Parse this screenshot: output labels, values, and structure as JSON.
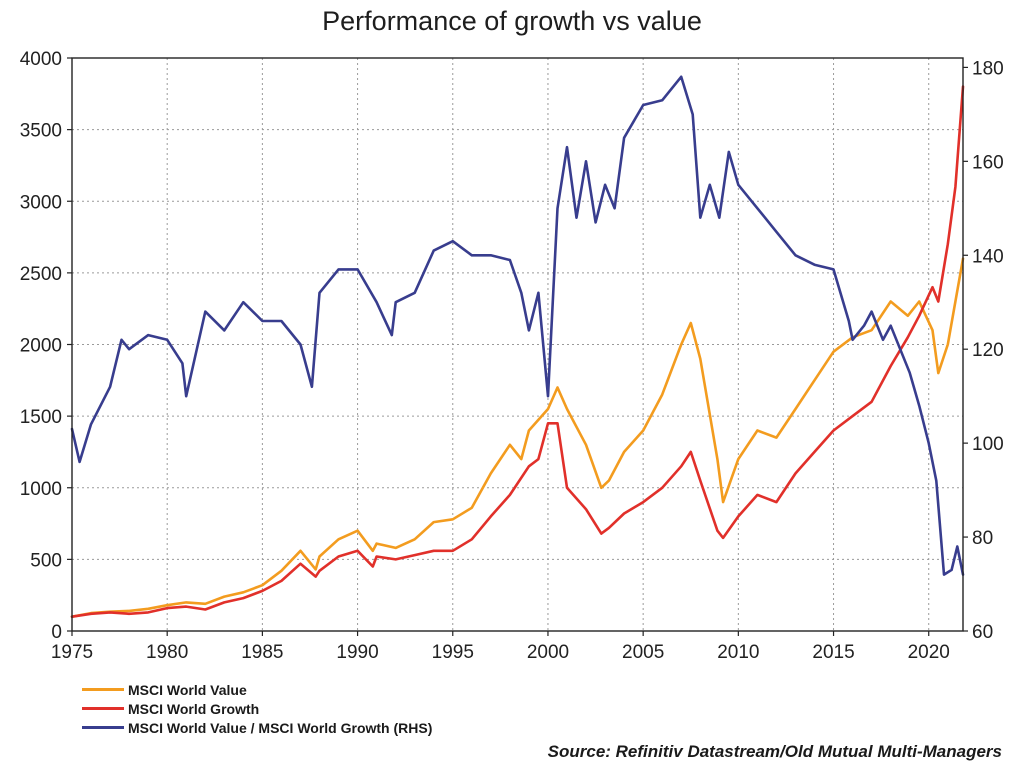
{
  "chart_data": {
    "type": "line",
    "title": "Performance of growth vs value",
    "x_ticks": [
      "1975",
      "1980",
      "1985",
      "1990",
      "1995",
      "2000",
      "2005",
      "2010",
      "2015",
      "2020"
    ],
    "xlim": [
      1975,
      2021.8
    ],
    "y_left": {
      "ticks": [
        "0",
        "500",
        "1000",
        "1500",
        "2000",
        "2500",
        "3000",
        "3500",
        "4000"
      ],
      "ylim": [
        0,
        4000
      ]
    },
    "y_right": {
      "ticks": [
        "60",
        "80",
        "100",
        "120",
        "140",
        "160",
        "180"
      ],
      "ylim": [
        60,
        182
      ]
    },
    "grid": true,
    "legend_position": "bottom-left",
    "series": [
      {
        "name": "MSCI World Value",
        "axis": "left",
        "color": "#f39c1f",
        "x": [
          1975,
          1976,
          1977,
          1978,
          1979,
          1980,
          1981,
          1982,
          1983,
          1984,
          1985,
          1986,
          1987,
          1987.8,
          1988,
          1989,
          1990,
          1990.8,
          1991,
          1992,
          1993,
          1994,
          1995,
          1996,
          1997,
          1998,
          1998.6,
          1999,
          2000,
          2000.5,
          2001,
          2002,
          2002.8,
          2003.2,
          2004,
          2005,
          2006,
          2007,
          2007.5,
          2008,
          2008.9,
          2009.2,
          2010,
          2011,
          2012,
          2013,
          2014,
          2015,
          2016,
          2017,
          2018,
          2018.9,
          2019.5,
          2020.2,
          2020.5,
          2021,
          2021.4,
          2021.8
        ],
        "y": [
          100,
          125,
          135,
          140,
          155,
          180,
          200,
          190,
          240,
          270,
          320,
          420,
          560,
          430,
          520,
          640,
          700,
          560,
          610,
          580,
          640,
          760,
          780,
          860,
          1100,
          1300,
          1200,
          1400,
          1550,
          1700,
          1550,
          1300,
          1000,
          1050,
          1250,
          1400,
          1650,
          2000,
          2150,
          1900,
          1200,
          900,
          1200,
          1400,
          1350,
          1550,
          1750,
          1950,
          2050,
          2100,
          2300,
          2200,
          2300,
          2100,
          1800,
          2000,
          2300,
          2600
        ]
      },
      {
        "name": "MSCI World Growth",
        "axis": "left",
        "color": "#e1302a",
        "x": [
          1975,
          1976,
          1977,
          1978,
          1979,
          1980,
          1981,
          1982,
          1983,
          1984,
          1985,
          1986,
          1987,
          1987.8,
          1988,
          1989,
          1990,
          1990.8,
          1991,
          1992,
          1993,
          1994,
          1995,
          1996,
          1997,
          1998,
          1999,
          1999.5,
          2000,
          2000.5,
          2001,
          2002,
          2002.8,
          2003.2,
          2004,
          2005,
          2006,
          2007,
          2007.5,
          2008,
          2008.9,
          2009.2,
          2010,
          2011,
          2012,
          2013,
          2014,
          2015,
          2016,
          2017,
          2018,
          2018.9,
          2019.5,
          2020.2,
          2020.5,
          2021,
          2021.4,
          2021.8
        ],
        "y": [
          100,
          120,
          130,
          120,
          130,
          160,
          170,
          150,
          200,
          230,
          280,
          350,
          470,
          380,
          420,
          520,
          560,
          450,
          520,
          500,
          530,
          560,
          560,
          640,
          800,
          950,
          1150,
          1200,
          1450,
          1450,
          1000,
          850,
          680,
          720,
          820,
          900,
          1000,
          1150,
          1250,
          1050,
          700,
          650,
          800,
          950,
          900,
          1100,
          1250,
          1400,
          1500,
          1600,
          1850,
          2050,
          2200,
          2400,
          2300,
          2700,
          3100,
          3800
        ]
      },
      {
        "name": "MSCI World Value / MSCI World Growth (RHS)",
        "axis": "right",
        "color": "#383d8e",
        "x": [
          1975,
          1975.4,
          1976,
          1977,
          1977.6,
          1978,
          1979,
          1980,
          1980.8,
          1981,
          1982,
          1983,
          1984,
          1985,
          1986,
          1987,
          1987.6,
          1988,
          1989,
          1990,
          1991,
          1991.8,
          1992,
          1993,
          1994,
          1995,
          1996,
          1997,
          1998,
          1998.6,
          1999,
          1999.5,
          2000,
          2000.5,
          2001,
          2001.5,
          2002,
          2002.5,
          2003,
          2003.5,
          2004,
          2005,
          2006,
          2007,
          2007.6,
          2008,
          2008.5,
          2009,
          2009.5,
          2010,
          2011,
          2012,
          2013,
          2014,
          2015,
          2015.8,
          2016,
          2016.6,
          2017,
          2017.6,
          2018,
          2019,
          2019.5,
          2020,
          2020.4,
          2020.8,
          2021.2,
          2021.5,
          2021.8
        ],
        "y": [
          103,
          96,
          104,
          112,
          122,
          120,
          123,
          122,
          117,
          110,
          128,
          124,
          130,
          126,
          126,
          121,
          112,
          132,
          137,
          137,
          130,
          123,
          130,
          132,
          141,
          143,
          140,
          140,
          139,
          132,
          124,
          132,
          110,
          150,
          163,
          148,
          160,
          147,
          155,
          150,
          165,
          172,
          173,
          178,
          170,
          148,
          155,
          148,
          162,
          155,
          150,
          145,
          140,
          138,
          137,
          126,
          122,
          125,
          128,
          122,
          125,
          115,
          108,
          100,
          92,
          72,
          73,
          78,
          72
        ]
      }
    ]
  },
  "source": "Source: Refinitiv Datastream/Old Mutual Multi-Managers"
}
